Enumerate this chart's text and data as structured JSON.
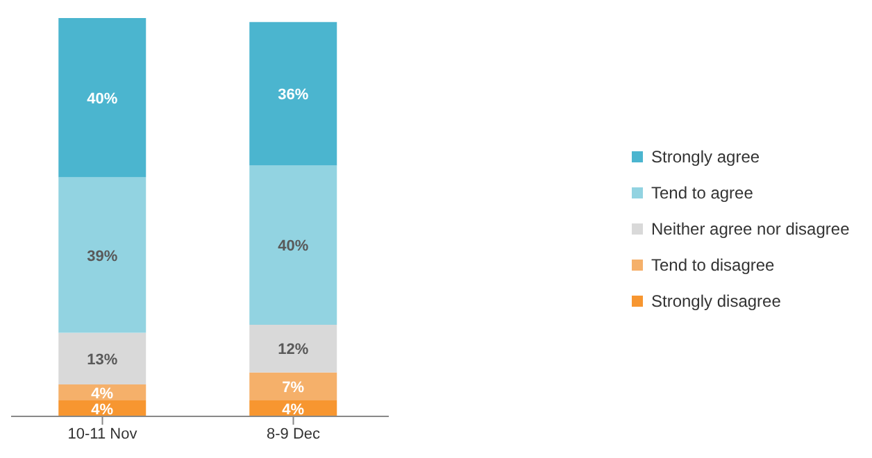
{
  "chart_data": {
    "type": "bar",
    "stacked": true,
    "categories": [
      "10-11 Nov",
      "8-9 Dec"
    ],
    "series": [
      {
        "name": "Strongly disagree",
        "color": "#f79630",
        "values": [
          4,
          4
        ],
        "value_labels": [
          "4%",
          "4%"
        ]
      },
      {
        "name": "Tend to disagree",
        "color": "#f5b06a",
        "values": [
          4,
          7
        ],
        "value_labels": [
          "4%",
          "7%"
        ]
      },
      {
        "name": "Neither agree nor disagree",
        "color": "#d9d9d9",
        "values": [
          13,
          12
        ],
        "value_labels": [
          "13%",
          "12%"
        ]
      },
      {
        "name": "Tend to agree",
        "color": "#92d3e1",
        "values": [
          39,
          40
        ],
        "value_labels": [
          "39%",
          "40%"
        ]
      },
      {
        "name": "Strongly agree",
        "color": "#4bb5cf",
        "values": [
          40,
          36
        ],
        "value_labels": [
          "40%",
          "36%"
        ]
      }
    ],
    "legend": "right",
    "grid": false
  }
}
